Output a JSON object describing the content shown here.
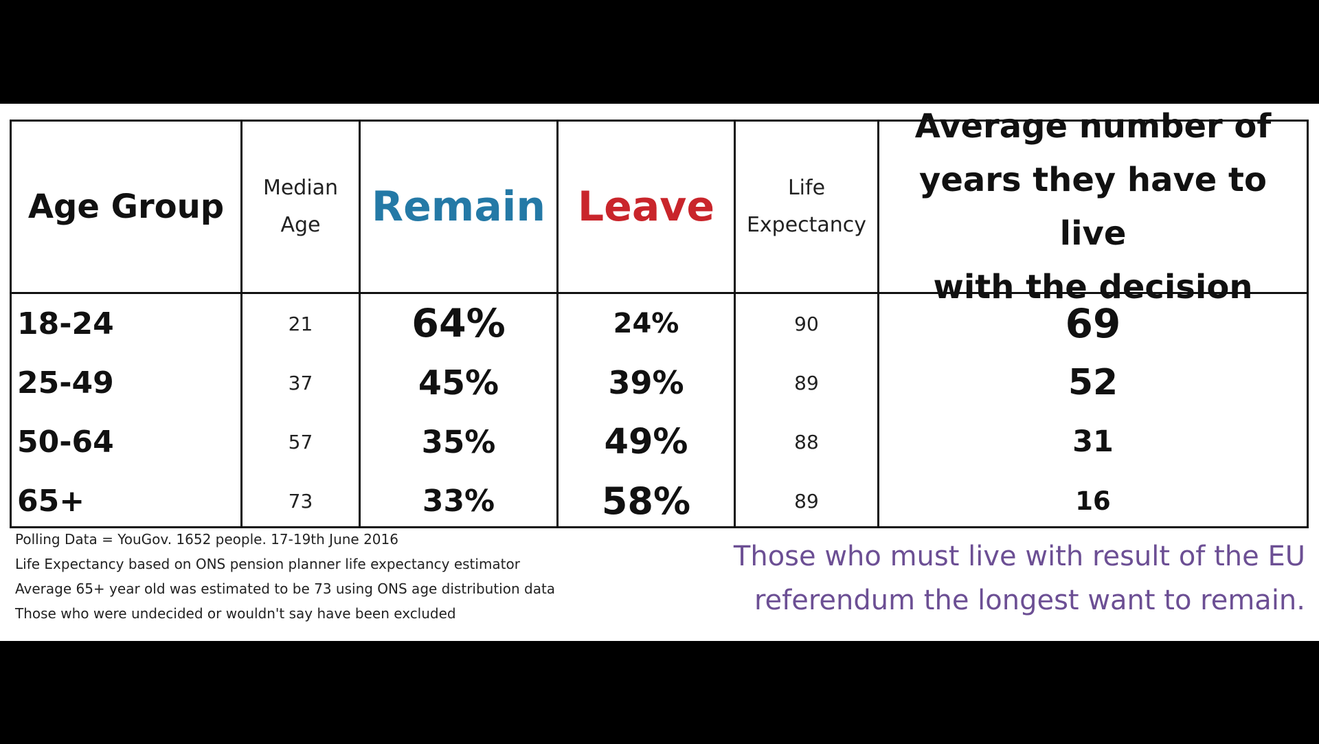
{
  "chart_data": {
    "type": "table",
    "columns": [
      "Age Group",
      "Median Age",
      "Remain",
      "Leave",
      "Life Expectancy",
      "Average number of years they have to live with the decision"
    ],
    "rows": [
      {
        "age_group": "18-24",
        "median_age": "21",
        "remain": "64%",
        "leave": "24%",
        "life_expectancy": "90",
        "years": "69"
      },
      {
        "age_group": "25-49",
        "median_age": "37",
        "remain": "45%",
        "leave": "39%",
        "life_expectancy": "89",
        "years": "52"
      },
      {
        "age_group": "50-64",
        "median_age": "57",
        "remain": "35%",
        "leave": "49%",
        "life_expectancy": "88",
        "years": "31"
      },
      {
        "age_group": "65+",
        "median_age": "73",
        "remain": "33%",
        "leave": "58%",
        "life_expectancy": "89",
        "years": "16"
      }
    ],
    "colors": {
      "remain": "#2479a6",
      "leave": "#c9252b",
      "callout": "#6c4f94"
    }
  },
  "header": {
    "age_group": "Age Group",
    "median_age_l1": "Median",
    "median_age_l2": "Age",
    "remain": "Remain",
    "leave": "Leave",
    "life_exp_l1": "Life",
    "life_exp_l2": "Expectancy",
    "years_l1": "Average number of",
    "years_l2": "years they have to live",
    "years_l3": "with the decision"
  },
  "notes": [
    "Polling Data = YouGov. 1652 people. 17-19th June 2016",
    "Life Expectancy based on ONS pension planner life expectancy estimator",
    "Average 65+ year old was estimated to be 73 using ONS age distribution data",
    "Those who were undecided or wouldn't say have been excluded"
  ],
  "callout": [
    "Those who must live with result of the EU",
    "referendum the longest want to remain."
  ]
}
